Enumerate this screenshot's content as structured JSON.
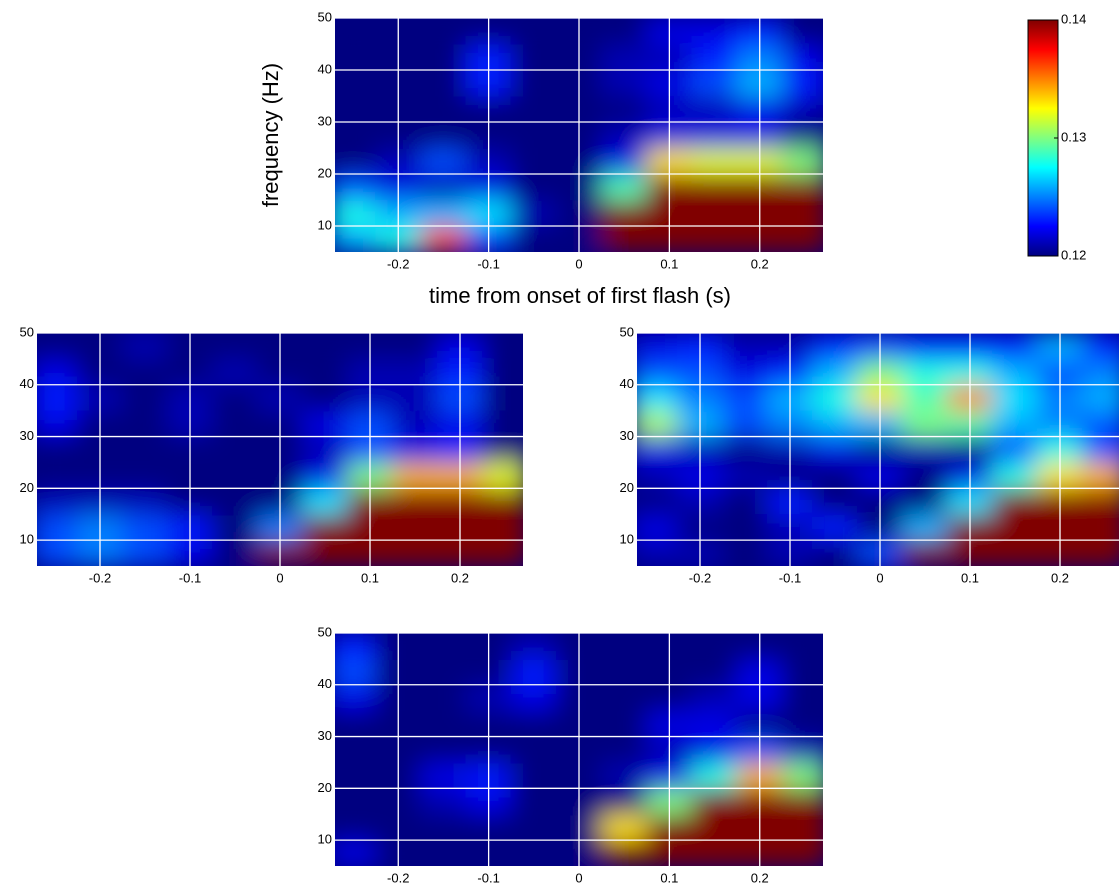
{
  "chart_data": [
    {
      "type": "heatmap",
      "xlabel": "time from onset of first flash (s)",
      "ylabel": "frequency (Hz)",
      "xlim": [
        -0.27,
        0.27
      ],
      "ylim": [
        5,
        50
      ],
      "xticks": [
        -0.2,
        -0.1,
        0,
        0.1,
        0.2
      ],
      "yticks": [
        10,
        20,
        30,
        40,
        50
      ],
      "grid": true,
      "colormap": "jet",
      "colorbar": {
        "clim": [
          0.12,
          0.14
        ],
        "ticks": [
          0.12,
          0.13,
          0.14
        ]
      },
      "x": [
        -0.25,
        -0.2,
        -0.15,
        -0.1,
        -0.05,
        0,
        0.05,
        0.1,
        0.15,
        0.2,
        0.25
      ],
      "y": [
        7.5,
        12.5,
        17.5,
        22.5,
        27.5,
        32.5,
        37.5,
        42.5,
        47.5
      ],
      "z": [
        [
          0.126,
          0.128,
          0.136,
          0.124,
          0.12,
          0.12,
          0.14,
          0.14,
          0.14,
          0.14,
          0.14
        ],
        [
          0.128,
          0.126,
          0.126,
          0.127,
          0.121,
          0.12,
          0.14,
          0.14,
          0.14,
          0.14,
          0.14
        ],
        [
          0.124,
          0.122,
          0.121,
          0.122,
          0.12,
          0.12,
          0.129,
          0.14,
          0.14,
          0.14,
          0.14
        ],
        [
          0.12,
          0.121,
          0.124,
          0.121,
          0.12,
          0.12,
          0.122,
          0.133,
          0.132,
          0.132,
          0.13
        ],
        [
          0.12,
          0.12,
          0.12,
          0.12,
          0.12,
          0.12,
          0.121,
          0.122,
          0.122,
          0.122,
          0.12
        ],
        [
          0.12,
          0.12,
          0.12,
          0.12,
          0.12,
          0.12,
          0.12,
          0.121,
          0.121,
          0.122,
          0.121
        ],
        [
          0.12,
          0.12,
          0.12,
          0.123,
          0.12,
          0.12,
          0.121,
          0.122,
          0.124,
          0.126,
          0.123
        ],
        [
          0.12,
          0.12,
          0.12,
          0.123,
          0.12,
          0.12,
          0.121,
          0.121,
          0.123,
          0.125,
          0.122
        ],
        [
          0.12,
          0.12,
          0.12,
          0.12,
          0.12,
          0.12,
          0.12,
          0.122,
          0.122,
          0.123,
          0.12
        ]
      ]
    },
    {
      "type": "heatmap",
      "xlim": [
        -0.27,
        0.27
      ],
      "ylim": [
        5,
        50
      ],
      "xticks": [
        -0.2,
        -0.1,
        0,
        0.1,
        0.2
      ],
      "yticks": [
        10,
        20,
        30,
        40,
        50
      ],
      "grid": true,
      "x": [
        -0.25,
        -0.2,
        -0.15,
        -0.1,
        -0.05,
        0,
        0.05,
        0.1,
        0.15,
        0.2,
        0.25
      ],
      "y": [
        7.5,
        12.5,
        17.5,
        22.5,
        27.5,
        32.5,
        37.5,
        42.5,
        47.5
      ],
      "z": [
        [
          0.124,
          0.125,
          0.124,
          0.122,
          0.12,
          0.14,
          0.14,
          0.14,
          0.14,
          0.14,
          0.14
        ],
        [
          0.124,
          0.125,
          0.124,
          0.123,
          0.12,
          0.125,
          0.14,
          0.14,
          0.14,
          0.14,
          0.14
        ],
        [
          0.121,
          0.121,
          0.121,
          0.12,
          0.12,
          0.12,
          0.127,
          0.14,
          0.14,
          0.14,
          0.14
        ],
        [
          0.12,
          0.12,
          0.12,
          0.12,
          0.12,
          0.12,
          0.122,
          0.13,
          0.134,
          0.134,
          0.132
        ],
        [
          0.12,
          0.12,
          0.12,
          0.12,
          0.12,
          0.12,
          0.121,
          0.124,
          0.122,
          0.123,
          0.12
        ],
        [
          0.122,
          0.12,
          0.12,
          0.121,
          0.12,
          0.12,
          0.122,
          0.124,
          0.121,
          0.122,
          0.12
        ],
        [
          0.123,
          0.121,
          0.12,
          0.121,
          0.12,
          0.121,
          0.12,
          0.121,
          0.121,
          0.124,
          0.12
        ],
        [
          0.122,
          0.12,
          0.12,
          0.12,
          0.121,
          0.12,
          0.12,
          0.121,
          0.121,
          0.123,
          0.12
        ],
        [
          0.12,
          0.12,
          0.121,
          0.12,
          0.12,
          0.12,
          0.12,
          0.12,
          0.12,
          0.122,
          0.12
        ]
      ]
    },
    {
      "type": "heatmap",
      "xlim": [
        -0.27,
        0.27
      ],
      "ylim": [
        5,
        50
      ],
      "xticks": [
        -0.2,
        -0.1,
        0,
        0.1,
        0.2
      ],
      "yticks": [
        10,
        20,
        30,
        40,
        50
      ],
      "grid": true,
      "x": [
        -0.25,
        -0.2,
        -0.15,
        -0.1,
        -0.05,
        0,
        0.05,
        0.1,
        0.15,
        0.2,
        0.25
      ],
      "y": [
        7.5,
        12.5,
        17.5,
        22.5,
        27.5,
        32.5,
        37.5,
        42.5,
        47.5
      ],
      "z": [
        [
          0.121,
          0.121,
          0.12,
          0.121,
          0.12,
          0.124,
          0.14,
          0.14,
          0.14,
          0.14,
          0.14
        ],
        [
          0.122,
          0.12,
          0.12,
          0.121,
          0.123,
          0.12,
          0.126,
          0.14,
          0.14,
          0.14,
          0.14
        ],
        [
          0.12,
          0.121,
          0.12,
          0.123,
          0.12,
          0.12,
          0.12,
          0.127,
          0.14,
          0.14,
          0.14
        ],
        [
          0.121,
          0.122,
          0.121,
          0.12,
          0.12,
          0.122,
          0.12,
          0.122,
          0.128,
          0.133,
          0.134
        ],
        [
          0.122,
          0.121,
          0.12,
          0.121,
          0.122,
          0.12,
          0.121,
          0.12,
          0.124,
          0.128,
          0.124
        ],
        [
          0.131,
          0.126,
          0.124,
          0.125,
          0.126,
          0.126,
          0.13,
          0.129,
          0.126,
          0.125,
          0.124
        ],
        [
          0.127,
          0.125,
          0.124,
          0.126,
          0.128,
          0.133,
          0.129,
          0.135,
          0.127,
          0.125,
          0.126
        ],
        [
          0.124,
          0.124,
          0.122,
          0.123,
          0.126,
          0.13,
          0.128,
          0.128,
          0.126,
          0.124,
          0.125
        ],
        [
          0.122,
          0.123,
          0.121,
          0.121,
          0.123,
          0.124,
          0.123,
          0.123,
          0.123,
          0.126,
          0.123
        ]
      ]
    },
    {
      "type": "heatmap",
      "xlim": [
        -0.27,
        0.27
      ],
      "ylim": [
        5,
        50
      ],
      "xticks": [
        -0.2,
        -0.1,
        0,
        0.1,
        0.2
      ],
      "yticks": [
        10,
        20,
        30,
        40,
        50
      ],
      "grid": true,
      "x": [
        -0.25,
        -0.2,
        -0.15,
        -0.1,
        -0.05,
        0,
        0.05,
        0.1,
        0.15,
        0.2,
        0.25
      ],
      "y": [
        7.5,
        12.5,
        17.5,
        22.5,
        27.5,
        32.5,
        37.5,
        42.5,
        47.5
      ],
      "z": [
        [
          0.122,
          0.12,
          0.12,
          0.12,
          0.12,
          0.12,
          0.14,
          0.14,
          0.14,
          0.14,
          0.14
        ],
        [
          0.12,
          0.12,
          0.12,
          0.12,
          0.12,
          0.12,
          0.133,
          0.14,
          0.14,
          0.14,
          0.14
        ],
        [
          0.12,
          0.12,
          0.121,
          0.122,
          0.12,
          0.12,
          0.12,
          0.13,
          0.14,
          0.14,
          0.14
        ],
        [
          0.12,
          0.12,
          0.122,
          0.123,
          0.12,
          0.12,
          0.121,
          0.122,
          0.128,
          0.134,
          0.13
        ],
        [
          0.12,
          0.12,
          0.12,
          0.12,
          0.12,
          0.12,
          0.12,
          0.121,
          0.122,
          0.124,
          0.121
        ],
        [
          0.12,
          0.12,
          0.12,
          0.12,
          0.12,
          0.12,
          0.12,
          0.122,
          0.122,
          0.12,
          0.12
        ],
        [
          0.122,
          0.12,
          0.12,
          0.121,
          0.122,
          0.12,
          0.12,
          0.12,
          0.121,
          0.122,
          0.12
        ],
        [
          0.124,
          0.12,
          0.12,
          0.12,
          0.123,
          0.12,
          0.12,
          0.12,
          0.12,
          0.122,
          0.12
        ],
        [
          0.123,
          0.12,
          0.12,
          0.12,
          0.121,
          0.12,
          0.12,
          0.12,
          0.12,
          0.12,
          0.12
        ]
      ]
    }
  ]
}
